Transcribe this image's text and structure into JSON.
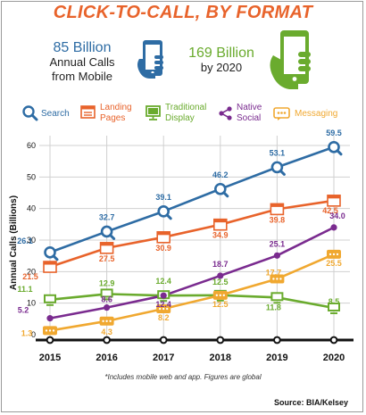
{
  "title": "CLICK-TO-CALL, BY FORMAT",
  "stats": {
    "mobile_value": "85 Billion",
    "mobile_desc_line1": "Annual Calls",
    "mobile_desc_line2": "from Mobile",
    "future_value": "169 Billion",
    "future_desc": "by 2020"
  },
  "footnote": "*Includes mobile web and app. Figures are global",
  "source": "Source: BIA/Kelsey",
  "colors": {
    "title": "#e8632b",
    "search": "#2e6ca4",
    "landing": "#e8632b",
    "traditional": "#6aab2e",
    "native": "#7a2b8f",
    "messaging": "#f0a830"
  },
  "chart_data": {
    "type": "line",
    "x": [
      "2015",
      "2016",
      "2017",
      "2018",
      "2019",
      "2020"
    ],
    "ylabel": "Annual Calls (Billions)",
    "ylim": [
      0,
      60
    ],
    "yticks": [
      "0",
      "10",
      "20",
      "30",
      "40",
      "50",
      "60"
    ],
    "grid": true,
    "legend_position": "top",
    "series": [
      {
        "key": "search",
        "name": "Search",
        "icon": "magnifier-icon",
        "color": "#2e6ca4",
        "values": [
          26.1,
          32.7,
          39.1,
          46.2,
          53.1,
          59.5
        ],
        "labels": [
          "26.1",
          "32.7",
          "39.1",
          "46.2",
          "53.1",
          "59.5"
        ]
      },
      {
        "key": "landing",
        "name_line1": "Landing",
        "name_line2": "Pages",
        "icon": "landing-page-icon",
        "color": "#e8632b",
        "values": [
          21.5,
          27.5,
          30.9,
          34.9,
          39.8,
          42.5
        ],
        "labels": [
          "21.5",
          "27.5",
          "30.9",
          "34.9",
          "39.8",
          "42.5"
        ]
      },
      {
        "key": "traditional",
        "name_line1": "Traditional",
        "name_line2": "Display",
        "icon": "monitor-icon",
        "color": "#6aab2e",
        "values": [
          11.1,
          12.9,
          12.4,
          12.5,
          11.8,
          8.5
        ],
        "labels": [
          "11.1",
          "12.9",
          "12.4",
          "12.5",
          "11.8",
          "8.5"
        ]
      },
      {
        "key": "native",
        "name_line1": "Native",
        "name_line2": "Social",
        "icon": "share-icon",
        "color": "#7a2b8f",
        "values": [
          5.2,
          8.6,
          12.4,
          18.7,
          25.1,
          34.0
        ],
        "labels": [
          "5.2",
          "8.6",
          "12.4",
          "18.7",
          "25.1",
          "34.0"
        ]
      },
      {
        "key": "messaging",
        "name": "Messaging",
        "icon": "chat-bubble-icon",
        "color": "#f0a830",
        "values": [
          1.3,
          4.3,
          8.2,
          12.5,
          17.7,
          25.5
        ],
        "labels": [
          "1.3",
          "4.3",
          "8.2",
          "12.5",
          "17.7",
          "25.5"
        ]
      }
    ]
  }
}
